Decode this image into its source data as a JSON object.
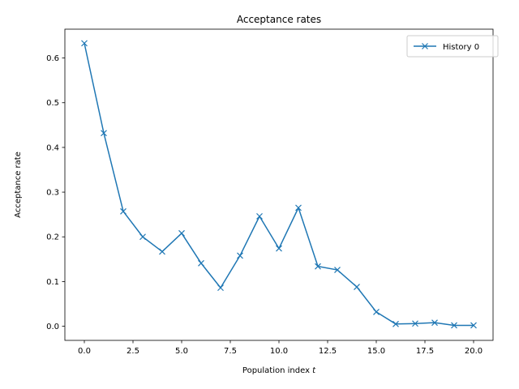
{
  "chart_data": {
    "type": "line",
    "title": "Acceptance rates",
    "xlabel_main": "Population index ",
    "xlabel_var": "t",
    "ylabel": "Acceptance rate",
    "xlim": [
      -1.0,
      21.0
    ],
    "ylim": [
      -0.0316,
      0.6645
    ],
    "xticks": [
      0.0,
      2.5,
      5.0,
      7.5,
      10.0,
      12.5,
      15.0,
      17.5,
      20.0
    ],
    "xtick_labels": [
      "0.0",
      "2.5",
      "5.0",
      "7.5",
      "10.0",
      "12.5",
      "15.0",
      "17.5",
      "20.0"
    ],
    "yticks": [
      0.0,
      0.1,
      0.2,
      0.3,
      0.4,
      0.5,
      0.6
    ],
    "ytick_labels": [
      "0.0",
      "0.1",
      "0.2",
      "0.3",
      "0.4",
      "0.5",
      "0.6"
    ],
    "grid": false,
    "legend_position": "top-right",
    "color": "#1f77b4",
    "marker": "x",
    "series": [
      {
        "name": "History 0",
        "x": [
          0,
          1,
          2,
          3,
          4,
          5,
          6,
          7,
          8,
          9,
          10,
          11,
          12,
          13,
          14,
          15,
          16,
          17,
          18,
          19,
          20
        ],
        "y": [
          0.633,
          0.432,
          0.257,
          0.2,
          0.167,
          0.208,
          0.141,
          0.086,
          0.158,
          0.246,
          0.174,
          0.265,
          0.134,
          0.126,
          0.088,
          0.032,
          0.005,
          0.006,
          0.008,
          0.002,
          0.002
        ]
      }
    ]
  }
}
